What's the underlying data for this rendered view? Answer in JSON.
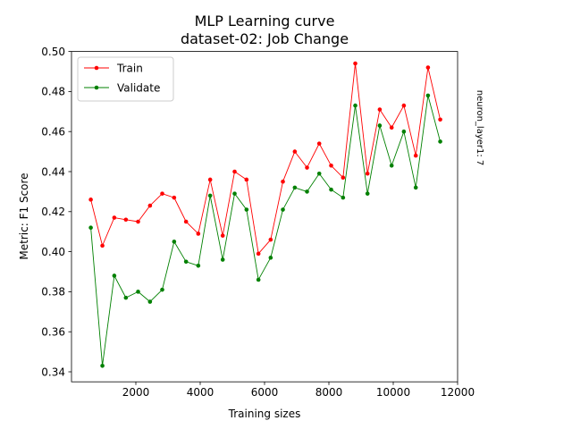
{
  "chart_data": {
    "type": "line",
    "title": "MLP Learning curve",
    "subtitle": "dataset-02: Job Change",
    "xlabel": "Training sizes",
    "ylabel": "Metric: F1 Score",
    "side_label": "neuron_layer1: 7",
    "xlim": [
      0,
      12000
    ],
    "ylim": [
      0.335,
      0.5
    ],
    "xticks": [
      2000,
      4000,
      6000,
      8000,
      10000,
      12000
    ],
    "yticks": [
      0.34,
      0.36,
      0.38,
      0.4,
      0.42,
      0.44,
      0.46,
      0.48,
      0.5
    ],
    "x": [
      600,
      960,
      1330,
      1690,
      2070,
      2440,
      2820,
      3190,
      3560,
      3940,
      4310,
      4700,
      5070,
      5440,
      5810,
      6190,
      6570,
      6940,
      7320,
      7700,
      8070,
      8440,
      8820,
      9200,
      9580,
      9950,
      10330,
      10700,
      11080,
      11460
    ],
    "series": [
      {
        "name": "Train",
        "color": "#ff0000",
        "values": [
          0.426,
          0.403,
          0.417,
          0.416,
          0.415,
          0.423,
          0.429,
          0.427,
          0.415,
          0.409,
          0.436,
          0.408,
          0.44,
          0.436,
          0.399,
          0.406,
          0.435,
          0.45,
          0.442,
          0.454,
          0.443,
          0.437,
          0.494,
          0.439,
          0.471,
          0.462,
          0.473,
          0.448,
          0.492,
          0.466
        ]
      },
      {
        "name": "Validate",
        "color": "#008000",
        "values": [
          0.412,
          0.343,
          0.388,
          0.377,
          0.38,
          0.375,
          0.381,
          0.405,
          0.395,
          0.393,
          0.428,
          0.396,
          0.429,
          0.421,
          0.386,
          0.397,
          0.421,
          0.432,
          0.43,
          0.439,
          0.431,
          0.427,
          0.473,
          0.429,
          0.463,
          0.443,
          0.46,
          0.432,
          0.478,
          0.455
        ]
      }
    ],
    "legend_position": "top-left",
    "grid": false
  }
}
